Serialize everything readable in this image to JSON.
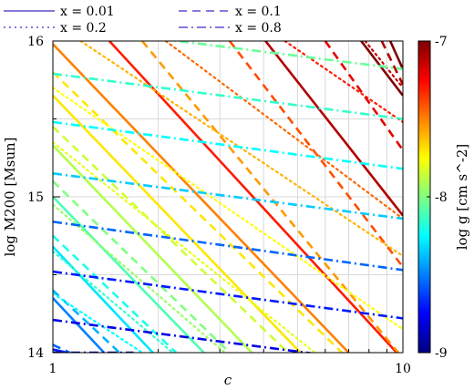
{
  "chart_data": {
    "type": "line",
    "xlabel": "c",
    "ylabel": "log M200 [Msun]",
    "xscale": "log",
    "xlim": [
      1,
      10
    ],
    "ylim": [
      14,
      16
    ],
    "x_ticks": [
      "1",
      "10"
    ],
    "y_ticks": [
      "14",
      "15",
      "16"
    ],
    "grid": true,
    "legend_position": "top",
    "legend": [
      {
        "label": "x = 0.01",
        "style": "solid"
      },
      {
        "label": "x = 0.1",
        "style": "dashed"
      },
      {
        "label": "x = 0.2",
        "style": "dotted"
      },
      {
        "label": "x = 0.8",
        "style": "dashdot"
      }
    ],
    "legend_color": "#5a4fcf",
    "colorbar": {
      "label": "log g [cm s^-2]",
      "range": [
        -9,
        -7
      ],
      "ticks": [
        "-7",
        "-8",
        "-9"
      ],
      "colormap": [
        "#00007f",
        "#0000ff",
        "#0080ff",
        "#00ffff",
        "#80ff80",
        "#ffff00",
        "#ff8000",
        "#ff0000",
        "#7f0000"
      ]
    },
    "series": [
      {
        "style": "solid",
        "logg": -8.7,
        "points": [
          [
            1.0,
            14.02
          ],
          [
            1.1,
            14.0
          ]
        ]
      },
      {
        "style": "solid",
        "logg": -8.5,
        "points": [
          [
            1.0,
            14.35
          ],
          [
            1.4,
            14.0
          ]
        ]
      },
      {
        "style": "solid",
        "logg": -8.3,
        "points": [
          [
            1.0,
            14.68
          ],
          [
            1.93,
            14.0
          ]
        ]
      },
      {
        "style": "solid",
        "logg": -8.1,
        "points": [
          [
            1.0,
            15.0
          ],
          [
            2.7,
            14.0
          ]
        ]
      },
      {
        "style": "solid",
        "logg": -7.9,
        "points": [
          [
            1.0,
            15.33
          ],
          [
            3.7,
            14.0
          ]
        ]
      },
      {
        "style": "solid",
        "logg": -7.7,
        "points": [
          [
            1.0,
            15.65
          ],
          [
            5.1,
            14.0
          ]
        ]
      },
      {
        "style": "solid",
        "logg": -7.5,
        "points": [
          [
            1.0,
            15.98
          ],
          [
            7.0,
            14.0
          ]
        ]
      },
      {
        "style": "solid",
        "logg": -7.3,
        "points": [
          [
            1.45,
            16.0
          ],
          [
            9.6,
            14.0
          ]
        ]
      },
      {
        "style": "solid",
        "logg": -7.1,
        "points": [
          [
            4.05,
            16.0
          ],
          [
            10.0,
            14.88
          ]
        ]
      },
      {
        "style": "solid",
        "logg": -6.9,
        "points": [
          [
            7.6,
            16.0
          ],
          [
            10.0,
            15.65
          ]
        ]
      },
      {
        "style": "solid",
        "logg": -6.85,
        "points": [
          [
            9.2,
            16.0
          ],
          [
            10.0,
            15.82
          ]
        ]
      },
      {
        "style": "dashed",
        "logg": -8.55,
        "points": [
          [
            1.0,
            14.05
          ],
          [
            1.12,
            14.0
          ]
        ]
      },
      {
        "style": "dashed",
        "logg": -8.4,
        "points": [
          [
            1.0,
            14.4
          ],
          [
            1.55,
            14.0
          ]
        ]
      },
      {
        "style": "dashed",
        "logg": -8.2,
        "points": [
          [
            1.0,
            14.75
          ],
          [
            2.25,
            14.0
          ]
        ]
      },
      {
        "style": "dashed",
        "logg": -8.0,
        "points": [
          [
            1.0,
            15.1
          ],
          [
            3.2,
            14.0
          ]
        ]
      },
      {
        "style": "dashed",
        "logg": -7.85,
        "points": [
          [
            1.0,
            15.45
          ],
          [
            4.7,
            14.0
          ]
        ]
      },
      {
        "style": "dashed",
        "logg": -7.7,
        "points": [
          [
            1.0,
            15.8
          ],
          [
            6.7,
            14.0
          ]
        ]
      },
      {
        "style": "dashed",
        "logg": -7.55,
        "points": [
          [
            1.8,
            16.0
          ],
          [
            9.7,
            14.0
          ]
        ]
      },
      {
        "style": "dashed",
        "logg": -7.4,
        "points": [
          [
            3.2,
            16.0
          ],
          [
            10.0,
            14.55
          ]
        ]
      },
      {
        "style": "dashed",
        "logg": -7.2,
        "points": [
          [
            6.0,
            16.0
          ],
          [
            10.0,
            15.3
          ]
        ]
      },
      {
        "style": "dashed",
        "logg": -7.1,
        "points": [
          [
            8.7,
            16.0
          ],
          [
            10.0,
            15.72
          ]
        ]
      },
      {
        "style": "dotted",
        "logg": -8.25,
        "points": [
          [
            1.0,
            14.38
          ],
          [
            1.8,
            14.0
          ]
        ]
      },
      {
        "style": "dotted",
        "logg": -8.15,
        "points": [
          [
            1.0,
            14.65
          ],
          [
            2.2,
            14.0
          ]
        ]
      },
      {
        "style": "dotted",
        "logg": -7.95,
        "points": [
          [
            1.0,
            14.95
          ],
          [
            3.1,
            14.0
          ]
        ]
      },
      {
        "style": "dotted",
        "logg": -7.8,
        "points": [
          [
            1.0,
            15.35
          ],
          [
            5.6,
            14.0
          ]
        ]
      },
      {
        "style": "dotted",
        "logg": -7.75,
        "points": [
          [
            1.0,
            15.7
          ],
          [
            10.0,
            14.15
          ]
        ]
      },
      {
        "style": "dotted",
        "logg": -7.6,
        "points": [
          [
            1.2,
            16.0
          ],
          [
            10.0,
            14.62
          ]
        ]
      },
      {
        "style": "dotted",
        "logg": -7.45,
        "points": [
          [
            2.1,
            16.0
          ],
          [
            10.0,
            14.86
          ]
        ]
      },
      {
        "style": "dotted",
        "logg": -7.3,
        "points": [
          [
            4.6,
            16.0
          ],
          [
            10.0,
            15.48
          ]
        ]
      },
      {
        "style": "dotted",
        "logg": -7.15,
        "points": [
          [
            7.8,
            16.0
          ],
          [
            10.0,
            15.7
          ]
        ]
      },
      {
        "style": "dashdot",
        "logg": -8.95,
        "points": [
          [
            1.0,
            14.0
          ],
          [
            1.7,
            14.0
          ]
        ]
      },
      {
        "style": "dashdot",
        "logg": -8.8,
        "points": [
          [
            1.0,
            14.21
          ],
          [
            10.0,
            13.92
          ]
        ]
      },
      {
        "style": "dashdot",
        "logg": -8.7,
        "points": [
          [
            1.0,
            14.52
          ],
          [
            10.0,
            14.22
          ]
        ]
      },
      {
        "style": "dashdot",
        "logg": -8.55,
        "points": [
          [
            1.0,
            14.84
          ],
          [
            10.0,
            14.53
          ]
        ]
      },
      {
        "style": "dashdot",
        "logg": -8.35,
        "points": [
          [
            1.0,
            15.15
          ],
          [
            10.0,
            14.86
          ]
        ]
      },
      {
        "style": "dashdot",
        "logg": -8.25,
        "points": [
          [
            1.0,
            15.48
          ],
          [
            10.0,
            15.18
          ]
        ]
      },
      {
        "style": "dashdot",
        "logg": -8.15,
        "points": [
          [
            1.0,
            15.79
          ],
          [
            10.0,
            15.5
          ]
        ]
      },
      {
        "style": "dashdot",
        "logg": -8.05,
        "points": [
          [
            1.0,
            16.1
          ],
          [
            10.0,
            15.82
          ]
        ]
      }
    ]
  }
}
